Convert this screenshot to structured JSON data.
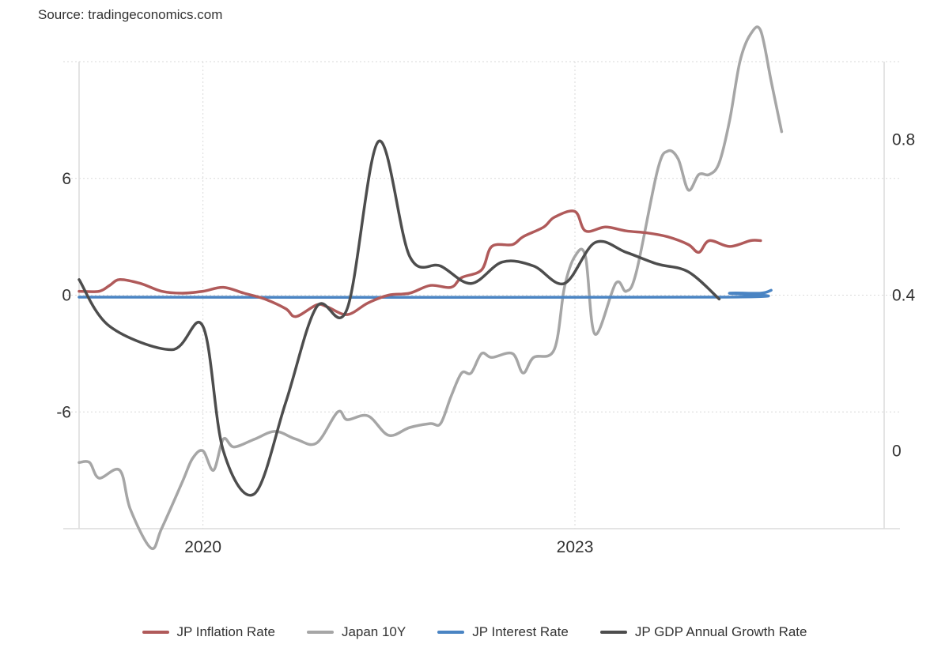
{
  "source": "Source: tradingeconomics.com",
  "chart_data": {
    "type": "line",
    "x_axis": {
      "type": "date",
      "range": [
        "2019-01-01",
        "2025-06-30"
      ],
      "ticks": [
        {
          "label": "2020",
          "date": "2020-01-01"
        },
        {
          "label": "2023",
          "date": "2023-01-01"
        }
      ]
    },
    "y_left": {
      "range": [
        -12,
        12
      ],
      "ticks": [
        -6,
        0,
        6
      ],
      "tick_labels": [
        "-6",
        "0",
        "6"
      ]
    },
    "y_right": {
      "range": [
        -0.2,
        1.0
      ],
      "ticks": [
        0,
        0.4,
        0.8
      ],
      "tick_labels": [
        "0",
        "0.4",
        "0.8"
      ]
    },
    "grid": true,
    "legend_position": "bottom",
    "series": [
      {
        "name": "JP Inflation Rate",
        "axis": "left",
        "color": "#b05a5a",
        "points": [
          [
            "2019-01",
            "0.2"
          ],
          [
            "2019-03",
            "0.2"
          ],
          [
            "2019-04",
            "0.5"
          ],
          [
            "2019-05",
            "0.8"
          ],
          [
            "2019-07",
            "0.6"
          ],
          [
            "2019-09",
            "0.2"
          ],
          [
            "2019-11",
            "0.1"
          ],
          [
            "2020-01",
            "0.2"
          ],
          [
            "2020-03",
            "0.4"
          ],
          [
            "2020-05",
            "0.1"
          ],
          [
            "2020-07",
            "-0.2"
          ],
          [
            "2020-09",
            "-0.7"
          ],
          [
            "2020-10",
            "-1.1"
          ],
          [
            "2020-12",
            "-0.5"
          ],
          [
            "2021-01",
            "-0.6"
          ],
          [
            "2021-03",
            "-1.0"
          ],
          [
            "2021-05",
            "-0.4"
          ],
          [
            "2021-07",
            "0.0"
          ],
          [
            "2021-09",
            "0.1"
          ],
          [
            "2021-11",
            "0.5"
          ],
          [
            "2022-01",
            "0.4"
          ],
          [
            "2022-02",
            "0.9"
          ],
          [
            "2022-04",
            "1.3"
          ],
          [
            "2022-05",
            "2.5"
          ],
          [
            "2022-07",
            "2.6"
          ],
          [
            "2022-08",
            "3.0"
          ],
          [
            "2022-10",
            "3.5"
          ],
          [
            "2022-11",
            "4.0"
          ],
          [
            "2023-01",
            "4.3"
          ],
          [
            "2023-02",
            "3.3"
          ],
          [
            "2023-04",
            "3.5"
          ],
          [
            "2023-06",
            "3.3"
          ],
          [
            "2023-08",
            "3.2"
          ],
          [
            "2023-10",
            "3.0"
          ],
          [
            "2023-12",
            "2.6"
          ],
          [
            "2024-01",
            "2.2"
          ],
          [
            "2024-02",
            "2.8"
          ],
          [
            "2024-04",
            "2.5"
          ],
          [
            "2024-06",
            "2.8"
          ],
          [
            "2024-07",
            "2.8"
          ]
        ]
      },
      {
        "name": "Japan 10Y",
        "axis": "right",
        "color": "#a6a6a6",
        "points": [
          [
            "2019-01",
            "-0.03"
          ],
          [
            "2019-02",
            "-0.03"
          ],
          [
            "2019-03",
            "-0.07"
          ],
          [
            "2019-05",
            "-0.05"
          ],
          [
            "2019-06",
            "-0.15"
          ],
          [
            "2019-08",
            "-0.25"
          ],
          [
            "2019-09",
            "-0.20"
          ],
          [
            "2019-11",
            "-0.08"
          ],
          [
            "2019-12",
            "-0.02"
          ],
          [
            "2020-01",
            "0.00"
          ],
          [
            "2020-02",
            "-0.05"
          ],
          [
            "2020-03",
            "0.03"
          ],
          [
            "2020-04",
            "0.01"
          ],
          [
            "2020-06",
            "0.03"
          ],
          [
            "2020-08",
            "0.05"
          ],
          [
            "2020-10",
            "0.03"
          ],
          [
            "2020-12",
            "0.02"
          ],
          [
            "2021-02",
            "0.10"
          ],
          [
            "2021-03",
            "0.08"
          ],
          [
            "2021-05",
            "0.09"
          ],
          [
            "2021-07",
            "0.04"
          ],
          [
            "2021-09",
            "0.06"
          ],
          [
            "2021-11",
            "0.07"
          ],
          [
            "2021-12",
            "0.07"
          ],
          [
            "2022-01",
            "0.14"
          ],
          [
            "2022-02",
            "0.20"
          ],
          [
            "2022-03",
            "0.20"
          ],
          [
            "2022-04",
            "0.25"
          ],
          [
            "2022-05",
            "0.24"
          ],
          [
            "2022-07",
            "0.25"
          ],
          [
            "2022-08",
            "0.20"
          ],
          [
            "2022-09",
            "0.24"
          ],
          [
            "2022-11",
            "0.26"
          ],
          [
            "2022-12",
            "0.42"
          ],
          [
            "2023-01",
            "0.50"
          ],
          [
            "2023-02",
            "0.50"
          ],
          [
            "2023-03",
            "0.30"
          ],
          [
            "2023-05",
            "0.43"
          ],
          [
            "2023-06",
            "0.41"
          ],
          [
            "2023-07",
            "0.46"
          ],
          [
            "2023-09",
            "0.72"
          ],
          [
            "2023-10",
            "0.77"
          ],
          [
            "2023-11",
            "0.75"
          ],
          [
            "2023-12",
            "0.67"
          ],
          [
            "2024-01",
            "0.71"
          ],
          [
            "2024-02",
            "0.71"
          ],
          [
            "2024-03",
            "0.74"
          ],
          [
            "2024-04",
            "0.85"
          ],
          [
            "2024-05",
            "1.00"
          ],
          [
            "2024-06",
            "1.07"
          ],
          [
            "2024-07",
            "1.08"
          ],
          [
            "2024-08",
            "0.95"
          ],
          [
            "2024-09",
            "0.82"
          ]
        ]
      },
      {
        "name": "JP Interest Rate",
        "axis": "left",
        "color": "#4a84c3",
        "points": [
          [
            "2019-01",
            "-0.1"
          ],
          [
            "2024-03",
            "-0.1"
          ],
          [
            "2024-04",
            "0.1"
          ],
          [
            "2024-07",
            "0.1"
          ],
          [
            "2024-08",
            "0.25"
          ]
        ]
      },
      {
        "name": "JP GDP Annual Growth Rate",
        "axis": "left",
        "color": "#4d4d4d",
        "points": [
          [
            "2019-01",
            "0.8"
          ],
          [
            "2019-04",
            "-1.6"
          ],
          [
            "2019-10",
            "-2.8"
          ],
          [
            "2020-01",
            "-1.6"
          ],
          [
            "2020-03",
            "-8.0"
          ],
          [
            "2020-06",
            "-10.2"
          ],
          [
            "2020-09",
            "-5.5"
          ],
          [
            "2020-12",
            "-0.6"
          ],
          [
            "2021-03",
            "-0.7"
          ],
          [
            "2021-06",
            "7.9"
          ],
          [
            "2021-09",
            "2.0"
          ],
          [
            "2021-12",
            "1.5"
          ],
          [
            "2022-03",
            "0.6"
          ],
          [
            "2022-06",
            "1.7"
          ],
          [
            "2022-09",
            "1.5"
          ],
          [
            "2022-12",
            "0.6"
          ],
          [
            "2023-03",
            "2.7"
          ],
          [
            "2023-06",
            "2.2"
          ],
          [
            "2023-09",
            "1.6"
          ],
          [
            "2023-12",
            "1.2"
          ],
          [
            "2024-03",
            "-0.2"
          ]
        ]
      }
    ]
  }
}
